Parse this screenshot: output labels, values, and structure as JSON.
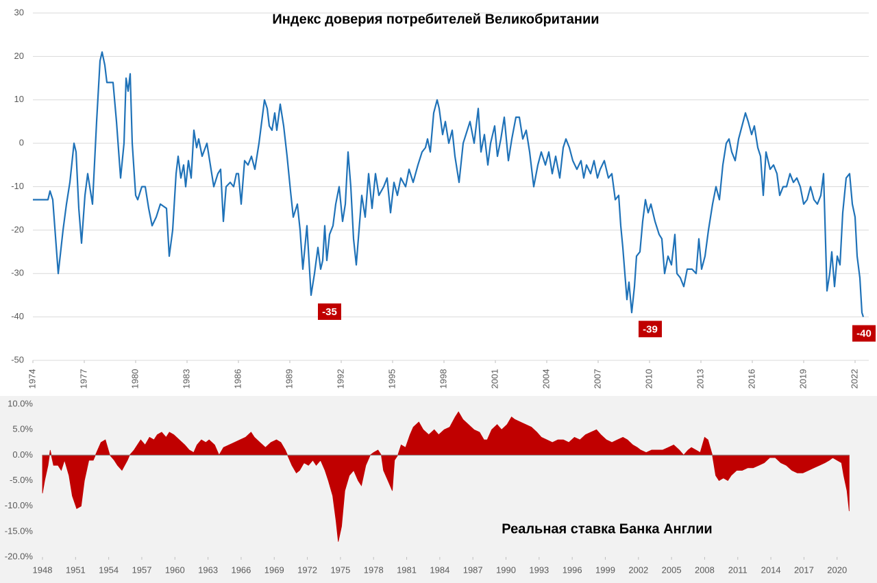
{
  "chart_data": [
    {
      "type": "line",
      "title": "Индекс доверия потребителей Великобритании",
      "color": "#1f72b8",
      "x": [
        1974.0,
        1974.88,
        1975.0,
        1975.16,
        1975.48,
        1975.76,
        1975.96,
        1976.16,
        1976.4,
        1976.52,
        1976.68,
        1976.84,
        1977.04,
        1977.2,
        1977.48,
        1977.72,
        1977.92,
        1978.04,
        1978.2,
        1978.32,
        1978.68,
        1978.88,
        1979.12,
        1979.32,
        1979.44,
        1979.56,
        1979.68,
        1979.8,
        1980.0,
        1980.12,
        1980.36,
        1980.56,
        1980.76,
        1980.96,
        1981.2,
        1981.44,
        1981.8,
        1981.96,
        1982.16,
        1982.36,
        1982.48,
        1982.64,
        1982.8,
        1982.92,
        1983.08,
        1983.24,
        1983.4,
        1983.56,
        1983.68,
        1983.88,
        1984.16,
        1984.36,
        1984.56,
        1984.8,
        1984.96,
        1985.12,
        1985.28,
        1985.52,
        1985.72,
        1985.88,
        1986.0,
        1986.16,
        1986.36,
        1986.56,
        1986.76,
        1986.96,
        1987.2,
        1987.36,
        1987.52,
        1987.68,
        1987.8,
        1987.96,
        1988.12,
        1988.24,
        1988.44,
        1988.64,
        1988.84,
        1989.04,
        1989.2,
        1989.44,
        1989.6,
        1989.76,
        1990.0,
        1990.24,
        1990.44,
        1990.64,
        1990.8,
        1990.92,
        1991.04,
        1991.16,
        1991.32,
        1991.52,
        1991.68,
        1991.88,
        1992.08,
        1992.24,
        1992.4,
        1992.56,
        1992.72,
        1992.88,
        1993.04,
        1993.2,
        1993.4,
        1993.6,
        1993.8,
        1994.0,
        1994.2,
        1994.48,
        1994.68,
        1994.88,
        1995.08,
        1995.28,
        1995.48,
        1995.76,
        1995.96,
        1996.2,
        1996.48,
        1996.72,
        1996.92,
        1997.04,
        1997.2,
        1997.4,
        1997.6,
        1997.72,
        1997.92,
        1998.08,
        1998.28,
        1998.48,
        1998.64,
        1998.88,
        1999.12,
        1999.36,
        1999.52,
        1999.76,
        2000.0,
        2000.16,
        2000.36,
        2000.56,
        2000.72,
        2000.96,
        2001.12,
        2001.32,
        2001.52,
        2001.76,
        2001.96,
        2002.2,
        2002.4,
        2002.6,
        2002.8,
        2003.0,
        2003.24,
        2003.48,
        2003.68,
        2003.92,
        2004.12,
        2004.32,
        2004.52,
        2004.76,
        2004.96,
        2005.12,
        2005.32,
        2005.52,
        2005.76,
        2006.0,
        2006.16,
        2006.32,
        2006.56,
        2006.76,
        2006.96,
        2007.12,
        2007.36,
        2007.6,
        2007.8,
        2008.0,
        2008.2,
        2008.32,
        2008.44,
        2008.6,
        2008.68,
        2008.8,
        2008.96,
        2009.12,
        2009.24,
        2009.44,
        2009.6,
        2009.76,
        2009.92,
        2010.08,
        2010.32,
        2010.56,
        2010.72,
        2010.88,
        2011.08,
        2011.28,
        2011.48,
        2011.6,
        2011.8,
        2012.0,
        2012.2,
        2012.48,
        2012.72,
        2012.88,
        2013.04,
        2013.24,
        2013.44,
        2013.68,
        2013.88,
        2014.08,
        2014.28,
        2014.48,
        2014.64,
        2014.8,
        2015.0,
        2015.2,
        2015.4,
        2015.6,
        2015.76,
        2015.96,
        2016.12,
        2016.32,
        2016.48,
        2016.64,
        2016.8,
        2017.04,
        2017.24,
        2017.44,
        2017.6,
        2017.8,
        2018.0,
        2018.2,
        2018.4,
        2018.6,
        2018.8,
        2019.0,
        2019.2,
        2019.4,
        2019.6,
        2019.8,
        2020.0,
        2020.16,
        2020.36,
        2020.52,
        2020.64,
        2020.8,
        2020.96,
        2021.12,
        2021.28,
        2021.48,
        2021.68,
        2021.84,
        2022.0,
        2022.12,
        2022.28,
        2022.4,
        2022.48
      ],
      "values": [
        -13,
        -13,
        -11,
        -13,
        -30,
        -20,
        -14,
        -9,
        0,
        -2,
        -15,
        -23,
        -12,
        -7,
        -14,
        5,
        19,
        21,
        18,
        14,
        14,
        5,
        -8,
        0,
        15,
        12,
        16,
        0,
        -12,
        -13,
        -10,
        -10,
        -15,
        -19,
        -17,
        -14,
        -15,
        -26,
        -20,
        -7,
        -3,
        -8,
        -5,
        -10,
        -4,
        -8,
        3,
        -1,
        1,
        -3,
        0,
        -5,
        -10,
        -7,
        -6,
        -18,
        -10,
        -9,
        -10,
        -7,
        -7,
        -14,
        -4,
        -5,
        -3,
        -6,
        0,
        5,
        10,
        8,
        4,
        3,
        7,
        3,
        9,
        4,
        -3,
        -11,
        -17,
        -14,
        -20,
        -29,
        -19,
        -35,
        -30,
        -24,
        -29,
        -27,
        -19,
        -27,
        -21,
        -19,
        -14,
        -10,
        -18,
        -14,
        -2,
        -10,
        -22,
        -28,
        -20,
        -12,
        -17,
        -7,
        -15,
        -7,
        -12,
        -10,
        -8,
        -16,
        -9,
        -12,
        -8,
        -10,
        -6,
        -9,
        -5,
        -2,
        -1,
        1,
        -2,
        7,
        10,
        8,
        2,
        5,
        0,
        3,
        -3,
        -9,
        0,
        3,
        5,
        0,
        8,
        -2,
        2,
        -5,
        0,
        4,
        -3,
        1,
        6,
        -4,
        1,
        6,
        6,
        1,
        3,
        -2,
        -10,
        -5,
        -2,
        -5,
        -2,
        -7,
        -3,
        -8,
        -1,
        1,
        -1,
        -4,
        -6,
        -4,
        -8,
        -5,
        -7,
        -4,
        -8,
        -6,
        -4,
        -8,
        -7,
        -13,
        -12,
        -19,
        -24,
        -32,
        -36,
        -32,
        -39,
        -33,
        -26,
        -25,
        -18,
        -13,
        -16,
        -14,
        -18,
        -21,
        -22,
        -30,
        -26,
        -28,
        -21,
        -30,
        -31,
        -33,
        -29,
        -29,
        -30,
        -22,
        -29,
        -26,
        -20,
        -14,
        -10,
        -13,
        -5,
        0,
        1,
        -2,
        -4,
        1,
        4,
        7,
        5,
        2,
        4,
        -1,
        -3,
        -12,
        -2,
        -6,
        -5,
        -7,
        -12,
        -10,
        -10,
        -7,
        -9,
        -8,
        -10,
        -14,
        -13,
        -10,
        -13,
        -14,
        -12,
        -7,
        -34,
        -30,
        -25,
        -33,
        -26,
        -28,
        -16,
        -8,
        -7,
        -14,
        -17,
        -26,
        -31,
        -39,
        -40
      ],
      "xlim": [
        1974,
        2022.8
      ],
      "ylim": [
        -50,
        30
      ],
      "xticks": [
        1974,
        1977,
        1980,
        1983,
        1986,
        1989,
        1992,
        1995,
        1998,
        2001,
        2004,
        2007,
        2010,
        2013,
        2016,
        2019,
        2022
      ],
      "yticks": [
        -50,
        -40,
        -30,
        -20,
        -10,
        0,
        10,
        20,
        30
      ],
      "grid": true,
      "annotations": [
        {
          "x": 1990.24,
          "value": -35
        },
        {
          "x": 2008.96,
          "value": -39
        },
        {
          "x": 2022.48,
          "value": -40
        }
      ]
    },
    {
      "type": "area",
      "title": "Реальная ставка Банка Англии",
      "color": "#c00000",
      "x": [
        1948.0,
        1948.2,
        1948.5,
        1948.7,
        1949.0,
        1949.4,
        1949.7,
        1950.0,
        1950.4,
        1950.7,
        1951.1,
        1951.5,
        1951.8,
        1952.2,
        1952.6,
        1953.0,
        1953.3,
        1953.7,
        1954.1,
        1954.5,
        1954.8,
        1955.2,
        1955.7,
        1955.9,
        1956.3,
        1956.6,
        1956.9,
        1957.3,
        1957.7,
        1958.1,
        1958.4,
        1958.8,
        1959.2,
        1959.5,
        1959.9,
        1960.4,
        1960.9,
        1961.3,
        1961.7,
        1962.0,
        1962.4,
        1962.8,
        1963.1,
        1963.6,
        1964.0,
        1964.4,
        1964.9,
        1965.4,
        1965.9,
        1966.4,
        1966.9,
        1967.2,
        1967.7,
        1968.2,
        1968.7,
        1969.2,
        1969.6,
        1970.0,
        1970.2,
        1970.6,
        1971.0,
        1971.3,
        1971.7,
        1972.1,
        1972.5,
        1972.8,
        1973.2,
        1973.6,
        1973.9,
        1974.3,
        1974.6,
        1974.8,
        1975.1,
        1975.4,
        1975.8,
        1976.2,
        1976.6,
        1976.9,
        1977.3,
        1977.7,
        1978.0,
        1978.4,
        1978.7,
        1978.9,
        1979.3,
        1979.7,
        1979.9,
        1980.2,
        1980.5,
        1980.9,
        1981.3,
        1981.6,
        1982.1,
        1982.5,
        1983.0,
        1983.5,
        1983.9,
        1984.4,
        1984.9,
        1985.4,
        1985.7,
        1986.1,
        1986.6,
        1987.1,
        1987.6,
        1988.0,
        1988.3,
        1988.7,
        1989.2,
        1989.6,
        1990.1,
        1990.5,
        1990.8,
        1991.3,
        1991.8,
        1992.3,
        1992.8,
        1993.2,
        1993.7,
        1994.2,
        1994.7,
        1995.2,
        1995.7,
        1996.2,
        1996.7,
        1997.2,
        1997.7,
        1998.2,
        1998.6,
        1999.1,
        1999.6,
        2000.1,
        2000.6,
        2001.0,
        2001.5,
        2001.9,
        2002.2,
        2002.7,
        2003.2,
        2003.7,
        2004.2,
        2004.7,
        2005.2,
        2005.7,
        2006.1,
        2006.5,
        2006.8,
        2007.2,
        2007.6,
        2008.0,
        2008.3,
        2008.7,
        2009.0,
        2009.3,
        2009.7,
        2010.1,
        2010.4,
        2010.9,
        2011.4,
        2011.9,
        2012.4,
        2012.9,
        2013.4,
        2013.9,
        2014.4,
        2014.9,
        2015.4,
        2015.9,
        2016.4,
        2016.9,
        2017.4,
        2017.9,
        2018.4,
        2018.9,
        2019.3,
        2019.6,
        2020.0,
        2020.4,
        2020.6,
        2020.9,
        2021.1
      ],
      "values": [
        -7.5,
        -5,
        -2,
        1,
        -2,
        -2,
        -3,
        -1,
        -4,
        -8,
        -10.5,
        -10,
        -5,
        -1,
        -1,
        1,
        2.5,
        3,
        0,
        -1,
        -2,
        -3,
        -1,
        0,
        1,
        2,
        3,
        2,
        3.5,
        3,
        4,
        4.5,
        3.5,
        4.5,
        4,
        3,
        2,
        1,
        0.5,
        2,
        3,
        2.5,
        3,
        2,
        0,
        1.5,
        2,
        2.5,
        3,
        3.5,
        4.5,
        3.5,
        2.5,
        1.5,
        2.5,
        3,
        2.5,
        1,
        0,
        -2,
        -3.5,
        -3,
        -1.5,
        -2,
        -1,
        -2,
        -1,
        -3,
        -5,
        -8,
        -13,
        -17,
        -14,
        -7,
        -4,
        -3,
        -5,
        -6,
        -2,
        0,
        0.5,
        1,
        0,
        -3,
        -5,
        -7,
        -1,
        0,
        2,
        1.5,
        4,
        5.5,
        6.5,
        5,
        4,
        5,
        4,
        5,
        5.5,
        7.5,
        8.5,
        7,
        6,
        5,
        4.5,
        3,
        3,
        5,
        6,
        5,
        6,
        7.5,
        7,
        6.5,
        6,
        5.5,
        4.5,
        3.5,
        3,
        2.5,
        3,
        3,
        2.5,
        3.5,
        3,
        4,
        4.5,
        5,
        4,
        3,
        2.5,
        3,
        3.5,
        3,
        2,
        1.5,
        1,
        0.5,
        1,
        1,
        1,
        1.5,
        2,
        1,
        0,
        1,
        1.5,
        1,
        0.5,
        3.5,
        3,
        0,
        -4,
        -5,
        -4.5,
        -5,
        -4,
        -3,
        -3,
        -2.5,
        -2.5,
        -2,
        -1.5,
        -0.5,
        -0.5,
        -1.5,
        -2,
        -3,
        -3.5,
        -3.5,
        -3,
        -2.5,
        -2,
        -1.5,
        -1,
        -0.5,
        -1,
        -1.5,
        -4,
        -7,
        -11
      ],
      "xlim": [
        1948,
        2022.5
      ],
      "ylim": [
        -20,
        10
      ],
      "xticks": [
        1948,
        1951,
        1954,
        1957,
        1960,
        1963,
        1966,
        1969,
        1972,
        1975,
        1978,
        1981,
        1984,
        1987,
        1990,
        1993,
        1996,
        1999,
        2002,
        2005,
        2008,
        2011,
        2014,
        2017,
        2020
      ],
      "yticks": [
        {
          "value": -20,
          "label": "-20.0%"
        },
        {
          "value": -15,
          "label": "-15.0%"
        },
        {
          "value": -10,
          "label": "-10.0%"
        },
        {
          "value": -5,
          "label": "-5.0%"
        },
        {
          "value": 0,
          "label": "0.0%"
        },
        {
          "value": 5,
          "label": "5.0%"
        },
        {
          "value": 10,
          "label": "10.0%"
        }
      ]
    }
  ]
}
